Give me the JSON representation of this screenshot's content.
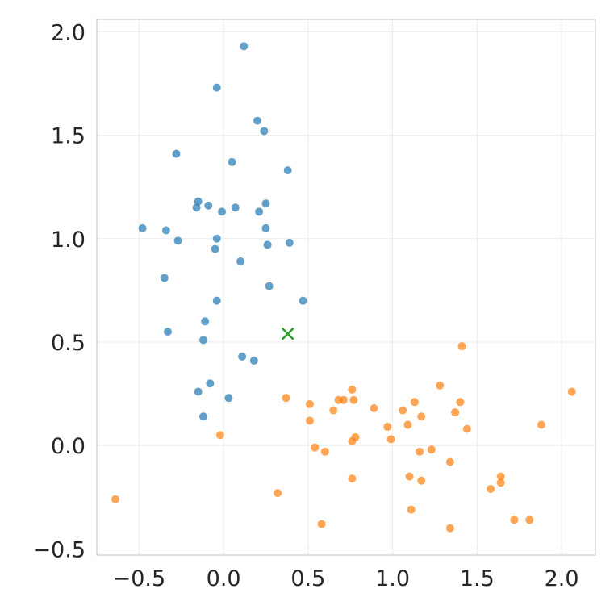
{
  "chart_data": {
    "type": "scatter",
    "title": "",
    "xlabel": "",
    "ylabel": "",
    "xlim": [
      -0.75,
      2.2
    ],
    "ylim": [
      -0.53,
      2.06
    ],
    "xticks": [
      -0.5,
      0.0,
      0.5,
      1.0,
      1.5,
      2.0
    ],
    "xtick_labels": [
      "−0.5",
      "0.0",
      "0.5",
      "1.0",
      "1.5",
      "2.0"
    ],
    "yticks": [
      -0.5,
      0.0,
      0.5,
      1.0,
      1.5,
      2.0
    ],
    "ytick_labels": [
      "−0.5",
      "0.0",
      "0.5",
      "1.0",
      "1.5",
      "2.0"
    ],
    "grid": true,
    "legend": "none",
    "series": [
      {
        "color": "#1f77b4",
        "marker": "circle",
        "points": [
          [
            0.12,
            1.93
          ],
          [
            -0.04,
            1.73
          ],
          [
            0.2,
            1.57
          ],
          [
            0.24,
            1.52
          ],
          [
            -0.28,
            1.41
          ],
          [
            0.05,
            1.37
          ],
          [
            0.38,
            1.33
          ],
          [
            -0.15,
            1.18
          ],
          [
            0.25,
            1.17
          ],
          [
            -0.09,
            1.16
          ],
          [
            -0.16,
            1.15
          ],
          [
            0.07,
            1.15
          ],
          [
            0.21,
            1.13
          ],
          [
            -0.01,
            1.13
          ],
          [
            -0.48,
            1.05
          ],
          [
            0.25,
            1.05
          ],
          [
            -0.34,
            1.04
          ],
          [
            -0.04,
            1.0
          ],
          [
            -0.27,
            0.99
          ],
          [
            0.39,
            0.98
          ],
          [
            0.26,
            0.97
          ],
          [
            -0.05,
            0.95
          ],
          [
            0.1,
            0.89
          ],
          [
            -0.35,
            0.81
          ],
          [
            0.27,
            0.77
          ],
          [
            -0.04,
            0.7
          ],
          [
            0.47,
            0.7
          ],
          [
            -0.11,
            0.6
          ],
          [
            -0.33,
            0.55
          ],
          [
            -0.12,
            0.51
          ],
          [
            0.11,
            0.43
          ],
          [
            0.18,
            0.41
          ],
          [
            -0.08,
            0.3
          ],
          [
            -0.15,
            0.26
          ],
          [
            0.03,
            0.23
          ],
          [
            -0.12,
            0.14
          ]
        ]
      },
      {
        "color": "#ff7f0e",
        "marker": "circle",
        "points": [
          [
            1.41,
            0.48
          ],
          [
            1.28,
            0.29
          ],
          [
            0.76,
            0.27
          ],
          [
            2.06,
            0.26
          ],
          [
            0.37,
            0.23
          ],
          [
            0.68,
            0.22
          ],
          [
            0.71,
            0.22
          ],
          [
            0.77,
            0.22
          ],
          [
            1.13,
            0.21
          ],
          [
            1.4,
            0.21
          ],
          [
            0.51,
            0.2
          ],
          [
            0.89,
            0.18
          ],
          [
            0.65,
            0.17
          ],
          [
            1.06,
            0.17
          ],
          [
            1.37,
            0.16
          ],
          [
            1.17,
            0.14
          ],
          [
            0.51,
            0.12
          ],
          [
            1.09,
            0.1
          ],
          [
            1.88,
            0.1
          ],
          [
            0.97,
            0.09
          ],
          [
            1.44,
            0.08
          ],
          [
            -0.02,
            0.05
          ],
          [
            0.78,
            0.04
          ],
          [
            0.99,
            0.03
          ],
          [
            0.76,
            0.02
          ],
          [
            0.54,
            -0.01
          ],
          [
            1.23,
            -0.02
          ],
          [
            0.6,
            -0.03
          ],
          [
            1.16,
            -0.03
          ],
          [
            1.34,
            -0.08
          ],
          [
            1.64,
            -0.15
          ],
          [
            1.1,
            -0.15
          ],
          [
            0.76,
            -0.16
          ],
          [
            1.17,
            -0.17
          ],
          [
            1.64,
            -0.18
          ],
          [
            1.58,
            -0.21
          ],
          [
            0.32,
            -0.23
          ],
          [
            -0.64,
            -0.26
          ],
          [
            1.11,
            -0.31
          ],
          [
            1.72,
            -0.36
          ],
          [
            1.81,
            -0.36
          ],
          [
            0.58,
            -0.38
          ],
          [
            1.34,
            -0.4
          ]
        ]
      }
    ],
    "annotations": [
      {
        "marker": "x",
        "color": "#2ca02c",
        "x": 0.38,
        "y": 0.54
      }
    ]
  }
}
